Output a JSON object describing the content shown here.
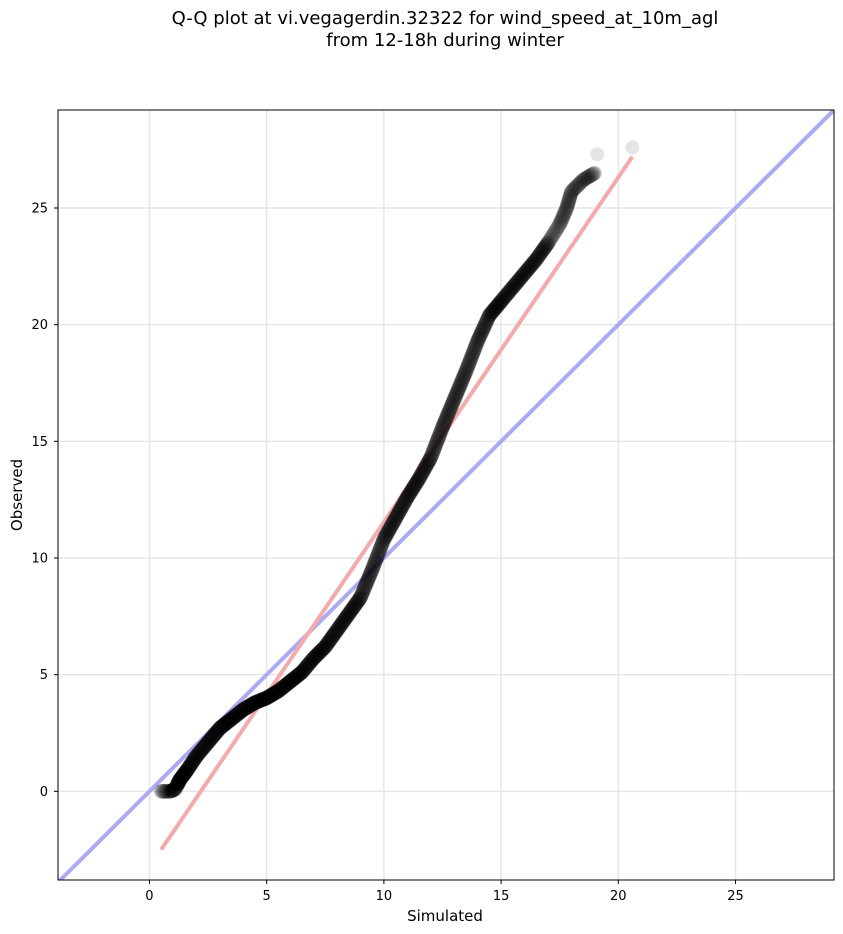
{
  "chart_data": {
    "type": "scatter",
    "title_lines": [
      "Q-Q plot at vi.vegagerdin.32322 for wind_speed_at_10m_agl",
      "from 12-18h during winter"
    ],
    "xlabel": "Simulated",
    "ylabel": "Observed",
    "xlim": [
      -3.9,
      29.2
    ],
    "ylim": [
      -3.8,
      29.2
    ],
    "xticks": [
      0,
      5,
      10,
      15,
      20,
      25
    ],
    "yticks": [
      0,
      5,
      10,
      15,
      20,
      25
    ],
    "grid": true,
    "reference_line": {
      "x": [
        -3.9,
        29.2
      ],
      "y": [
        -3.9,
        29.2
      ],
      "color": "#aaaaf5"
    },
    "fit_line": {
      "x": [
        0.5,
        20.6
      ],
      "y": [
        -2.5,
        27.2
      ],
      "color": "#f5aaaa"
    },
    "quantile_curve": [
      [
        0.5,
        0.0
      ],
      [
        0.9,
        0.0
      ],
      [
        1.1,
        0.1
      ],
      [
        1.3,
        0.5
      ],
      [
        1.6,
        0.9
      ],
      [
        2.0,
        1.5
      ],
      [
        2.5,
        2.1
      ],
      [
        3.0,
        2.7
      ],
      [
        3.5,
        3.1
      ],
      [
        4.0,
        3.5
      ],
      [
        4.5,
        3.8
      ],
      [
        5.0,
        4.0
      ],
      [
        5.5,
        4.3
      ],
      [
        6.0,
        4.7
      ],
      [
        6.5,
        5.1
      ],
      [
        7.0,
        5.7
      ],
      [
        7.5,
        6.2
      ],
      [
        8.0,
        6.9
      ],
      [
        8.5,
        7.6
      ],
      [
        9.0,
        8.3
      ],
      [
        9.5,
        9.5
      ],
      [
        10.0,
        10.8
      ],
      [
        10.5,
        11.7
      ],
      [
        11.0,
        12.6
      ],
      [
        11.5,
        13.4
      ],
      [
        12.0,
        14.3
      ],
      [
        12.5,
        15.6
      ],
      [
        13.0,
        16.8
      ],
      [
        13.5,
        18.0
      ],
      [
        14.0,
        19.3
      ],
      [
        14.5,
        20.4
      ],
      [
        15.0,
        21.0
      ],
      [
        15.5,
        21.6
      ],
      [
        16.0,
        22.2
      ],
      [
        16.5,
        22.8
      ],
      [
        17.0,
        23.5
      ],
      [
        17.5,
        24.3
      ],
      [
        17.8,
        25.0
      ],
      [
        18.0,
        25.7
      ],
      [
        18.5,
        26.2
      ],
      [
        19.0,
        26.5
      ]
    ],
    "outlier_points": [
      [
        19.1,
        27.3
      ],
      [
        20.6,
        27.6
      ]
    ],
    "point_color": "#000000"
  }
}
